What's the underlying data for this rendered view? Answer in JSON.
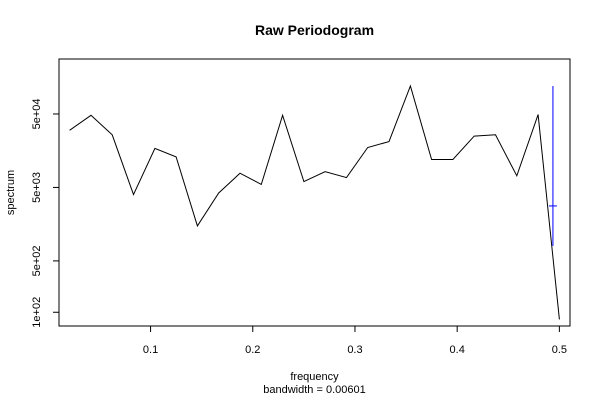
{
  "chart_data": {
    "type": "line",
    "title": "Raw Periodogram",
    "xlabel": "frequency",
    "sublabel": "bandwidth = 0.00601",
    "ylabel": "spectrum",
    "log_y": true,
    "xlim": [
      0.0104,
      0.5104
    ],
    "ylim": [
      65,
      280000
    ],
    "x_ticks": [
      {
        "value": 0.1,
        "label": "0.1"
      },
      {
        "value": 0.2,
        "label": "0.2"
      },
      {
        "value": 0.3,
        "label": "0.3"
      },
      {
        "value": 0.4,
        "label": "0.4"
      },
      {
        "value": 0.5,
        "label": "0.5"
      }
    ],
    "y_ticks": [
      {
        "value": 100,
        "label": "1e+02"
      },
      {
        "value": 500,
        "label": "5e+02"
      },
      {
        "value": 5000,
        "label": "5e+03"
      },
      {
        "value": 50000,
        "label": "5e+04"
      }
    ],
    "series": [
      {
        "color": "#000000",
        "x": [
          0.0208,
          0.0417,
          0.0625,
          0.0833,
          0.1042,
          0.125,
          0.1458,
          0.1667,
          0.1875,
          0.2083,
          0.2292,
          0.25,
          0.2708,
          0.2917,
          0.3125,
          0.3333,
          0.3542,
          0.375,
          0.3958,
          0.4167,
          0.4375,
          0.4583,
          0.4792,
          0.5
        ],
        "y": [
          30000,
          48000,
          26000,
          4000,
          17000,
          13000,
          1500,
          4200,
          7800,
          5500,
          48000,
          6000,
          8200,
          6800,
          17500,
          21000,
          120000,
          12000,
          12000,
          25000,
          26000,
          7200,
          49000,
          80
        ]
      }
    ],
    "ci_bar": {
      "color": "#0000ff",
      "x": 0.4937,
      "center": 2800,
      "lower": 800,
      "upper": 120000
    }
  }
}
